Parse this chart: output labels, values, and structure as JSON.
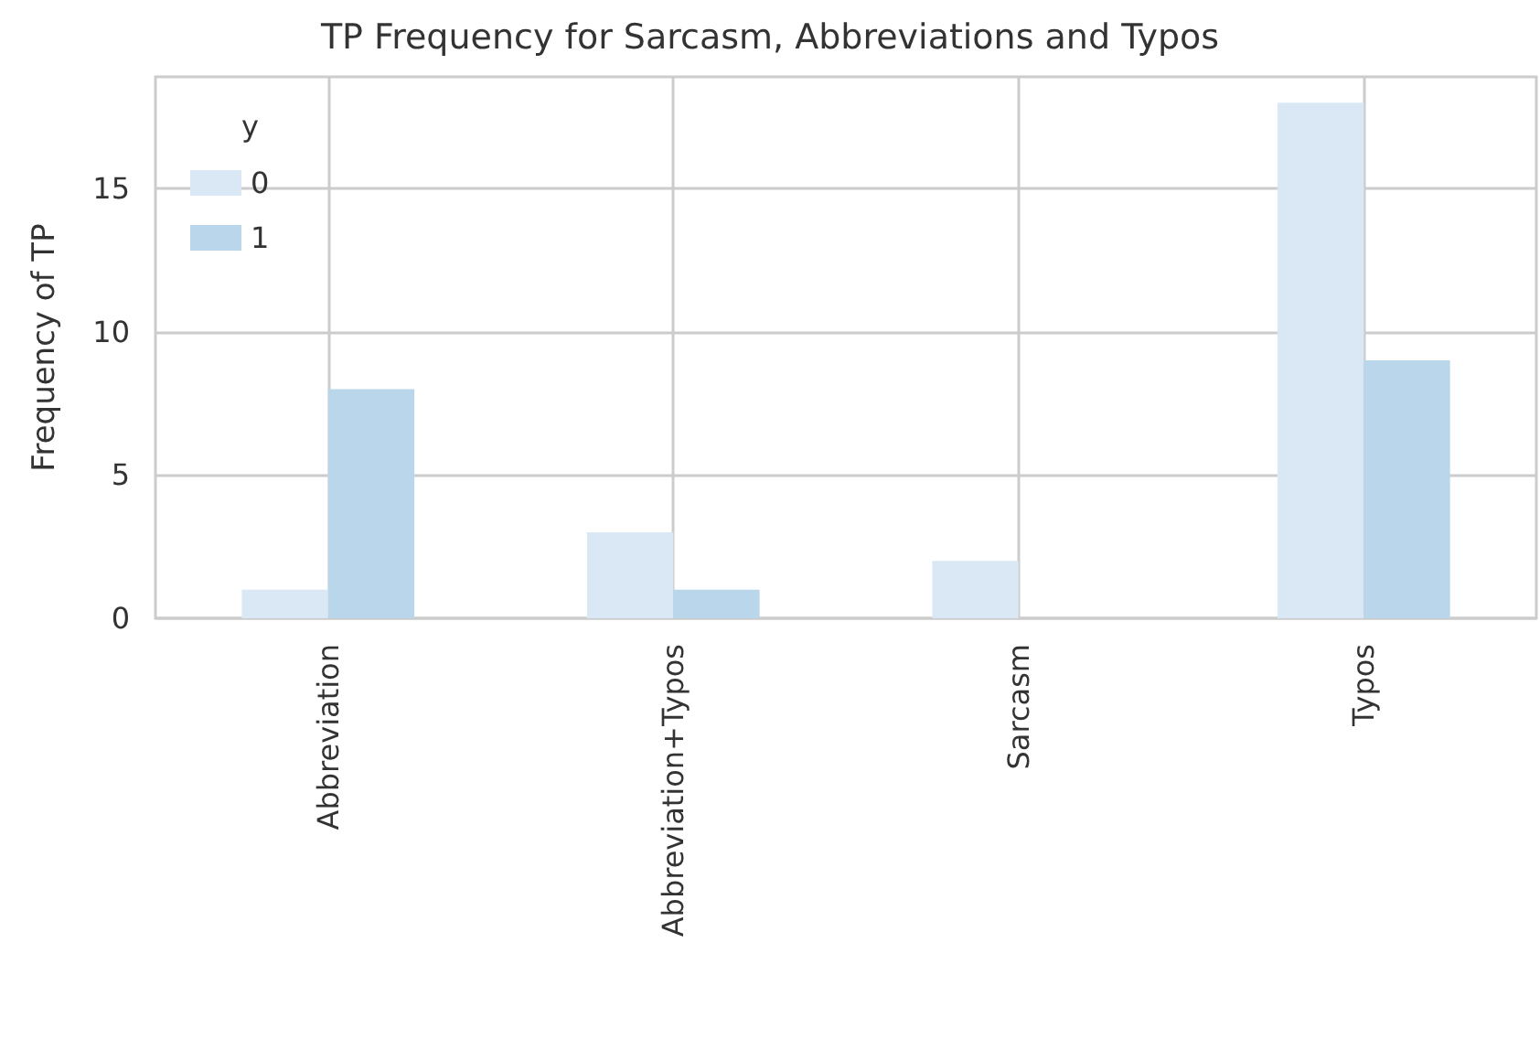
{
  "chart_data": {
    "type": "bar",
    "title": "TP Frequency for Sarcasm, Abbreviations and Typos",
    "ylabel": "Frequency of TP",
    "legend_title": "y",
    "categories": [
      "Abbreviation",
      "Abbreviation+Typos",
      "Sarcasm",
      "Typos"
    ],
    "series": [
      {
        "name": "0",
        "color": "#dae8f5",
        "values": [
          1,
          3,
          2,
          18
        ]
      },
      {
        "name": "1",
        "color": "#b9d6ea",
        "values": [
          8,
          1,
          0,
          9
        ]
      }
    ],
    "ylim": [
      0,
      18.9
    ],
    "yticks": [
      0,
      5,
      10,
      15
    ],
    "grid": true,
    "legend": "top left"
  }
}
